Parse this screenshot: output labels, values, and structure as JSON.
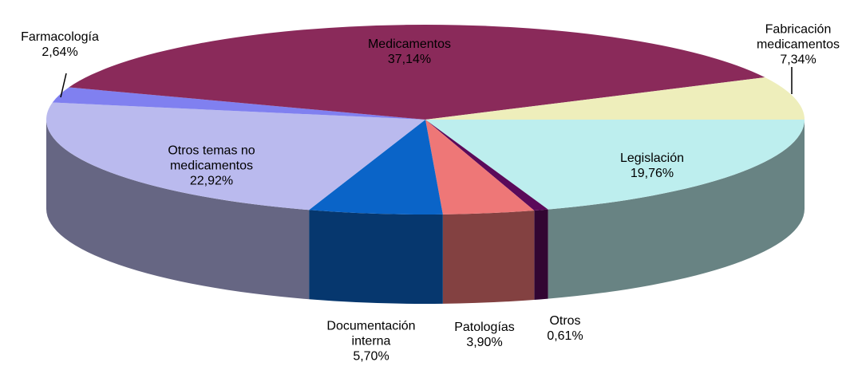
{
  "chart_data": {
    "type": "pie3d",
    "categories": [
      "Legislación",
      "Otros",
      "Patologías",
      "Documentación interna",
      "Otros temas no medicamentos",
      "Farmacología",
      "Medicamentos",
      "Fabricación medicamentos"
    ],
    "values": [
      19.76,
      0.61,
      3.9,
      5.7,
      22.92,
      2.64,
      37.14,
      7.34
    ],
    "value_labels": [
      "19,76%",
      "0,61%",
      "3,90%",
      "5,70%",
      "22,92%",
      "2,64%",
      "37,14%",
      "7,34%"
    ],
    "colors": [
      "#bdeeee",
      "#5a0a5a",
      "#ee7777",
      "#0a64c8",
      "#babaee",
      "#8080f0",
      "#8a2a5a",
      "#eeeebb"
    ]
  }
}
